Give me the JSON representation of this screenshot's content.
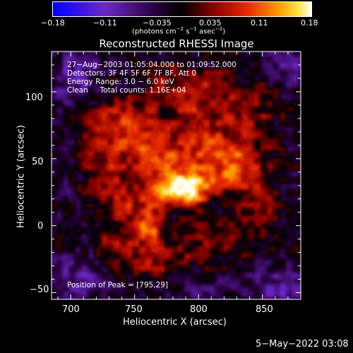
{
  "colorbar": {
    "ticks": [
      "−0.18",
      "−0.11",
      "−0.035",
      "0.035",
      "0.11",
      "0.18"
    ],
    "units_prefix": "(photons cm",
    "units_exp1": "−2",
    "units_mid": " s",
    "units_exp2": "−1",
    "units_mid2": " asec",
    "units_exp3": "−2",
    "units_suffix": ")"
  },
  "title": "Reconstructed RHESSI Image",
  "info": {
    "line1": "27−Aug−2003 01:05:04.000 to 01:09:52.000",
    "line2": "Detectors: 3F 4F 5F 6F 7F 8F, Att 0",
    "line3": "Energy Range: 3.0 − 6.0 keV",
    "line4": "Clean     Total counts: 1.16E+04"
  },
  "peak_label": "Position of Peak = [795,29]",
  "x_axis": {
    "label": "Heliocentric X (arcsec)",
    "ticks": [
      "700",
      "750",
      "800",
      "850"
    ]
  },
  "y_axis": {
    "label": "Heliocentric Y (arcsec)",
    "ticks": [
      "100",
      "50",
      "0",
      "−50"
    ]
  },
  "footer_timestamp": "5−May−2022 03:08",
  "chart_data": {
    "type": "heatmap",
    "title": "Reconstructed RHESSI Image",
    "xlabel": "Heliocentric X (arcsec)",
    "ylabel": "Heliocentric Y (arcsec)",
    "xlim": [
      685,
      880
    ],
    "ylim": [
      -55,
      130
    ],
    "colorbar_range": [
      -0.18,
      0.18
    ],
    "colorbar_unit": "photons cm^-2 s^-1 asec^-2",
    "peak": {
      "x": 795,
      "y": 29
    },
    "blobs": [
      {
        "x": 796,
        "y": 29,
        "value": 0.18,
        "sx": 10,
        "sy": 9
      },
      {
        "x": 775,
        "y": 28,
        "value": 0.16,
        "sx": 11,
        "sy": 10
      },
      {
        "x": 762,
        "y": 0,
        "value": 0.12,
        "sx": 8,
        "sy": 9
      },
      {
        "x": 768,
        "y": 56,
        "value": 0.1,
        "sx": 20,
        "sy": 12
      },
      {
        "x": 812,
        "y": 55,
        "value": 0.1,
        "sx": 16,
        "sy": 14
      },
      {
        "x": 832,
        "y": 40,
        "value": 0.09,
        "sx": 14,
        "sy": 13
      },
      {
        "x": 745,
        "y": 80,
        "value": 0.08,
        "sx": 18,
        "sy": 12
      },
      {
        "x": 805,
        "y": 88,
        "value": 0.08,
        "sx": 20,
        "sy": 10
      },
      {
        "x": 790,
        "y": 108,
        "value": 0.06,
        "sx": 25,
        "sy": 8
      },
      {
        "x": 725,
        "y": 55,
        "value": 0.07,
        "sx": 12,
        "sy": 22
      },
      {
        "x": 745,
        "y": 20,
        "value": 0.08,
        "sx": 12,
        "sy": 14
      },
      {
        "x": 738,
        "y": -15,
        "value": 0.06,
        "sx": 12,
        "sy": 12
      },
      {
        "x": 770,
        "y": -25,
        "value": 0.07,
        "sx": 18,
        "sy": 10
      },
      {
        "x": 815,
        "y": -10,
        "value": 0.06,
        "sx": 15,
        "sy": 10
      },
      {
        "x": 850,
        "y": 15,
        "value": 0.05,
        "sx": 12,
        "sy": 15
      },
      {
        "x": 845,
        "y": 80,
        "value": 0.05,
        "sx": 15,
        "sy": 18
      },
      {
        "x": 705,
        "y": 110,
        "value": -0.07,
        "sx": 14,
        "sy": 14
      },
      {
        "x": 705,
        "y": -40,
        "value": -0.06,
        "sx": 14,
        "sy": 12
      },
      {
        "x": 865,
        "y": -45,
        "value": -0.07,
        "sx": 14,
        "sy": 10
      },
      {
        "x": 870,
        "y": 120,
        "value": -0.05,
        "sx": 15,
        "sy": 12
      },
      {
        "x": 800,
        "y": -50,
        "value": -0.04,
        "sx": 20,
        "sy": 6
      }
    ]
  },
  "colors": {
    "background": "#000000",
    "text": "#ffffff"
  }
}
